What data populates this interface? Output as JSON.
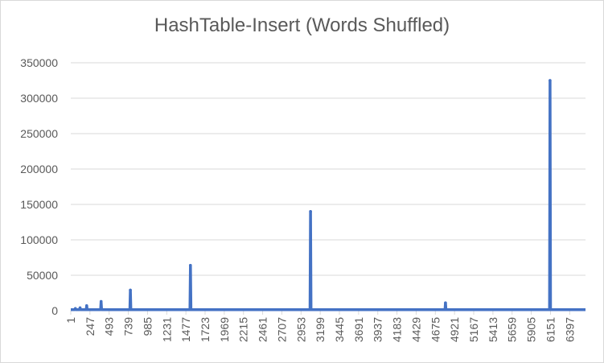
{
  "chart_data": {
    "type": "line",
    "title": "HashTable-Insert  (Words Shuffled)",
    "xlabel": "",
    "ylabel": "",
    "ylim": [
      0,
      350000
    ],
    "y_ticks": [
      "0",
      "50000",
      "100000",
      "150000",
      "200000",
      "250000",
      "300000",
      "350000"
    ],
    "x_tick_labels": [
      "1",
      "247",
      "493",
      "739",
      "985",
      "1231",
      "1477",
      "1723",
      "1969",
      "2215",
      "2461",
      "2707",
      "2953",
      "3199",
      "3445",
      "3691",
      "3937",
      "4183",
      "4429",
      "4675",
      "4921",
      "5167",
      "5413",
      "5659",
      "5905",
      "6151",
      "6397"
    ],
    "x_range": [
      1,
      6600
    ],
    "grid": "horizontal",
    "legend": "none",
    "series_color": "#4472c4",
    "baseline_value": 1500,
    "spikes": [
      {
        "x": 60,
        "y": 3000
      },
      {
        "x": 120,
        "y": 4000
      },
      {
        "x": 205,
        "y": 7000
      },
      {
        "x": 390,
        "y": 13000
      },
      {
        "x": 765,
        "y": 29000
      },
      {
        "x": 1535,
        "y": 64000
      },
      {
        "x": 3075,
        "y": 140000
      },
      {
        "x": 4805,
        "y": 11000
      },
      {
        "x": 6145,
        "y": 325000
      }
    ]
  }
}
